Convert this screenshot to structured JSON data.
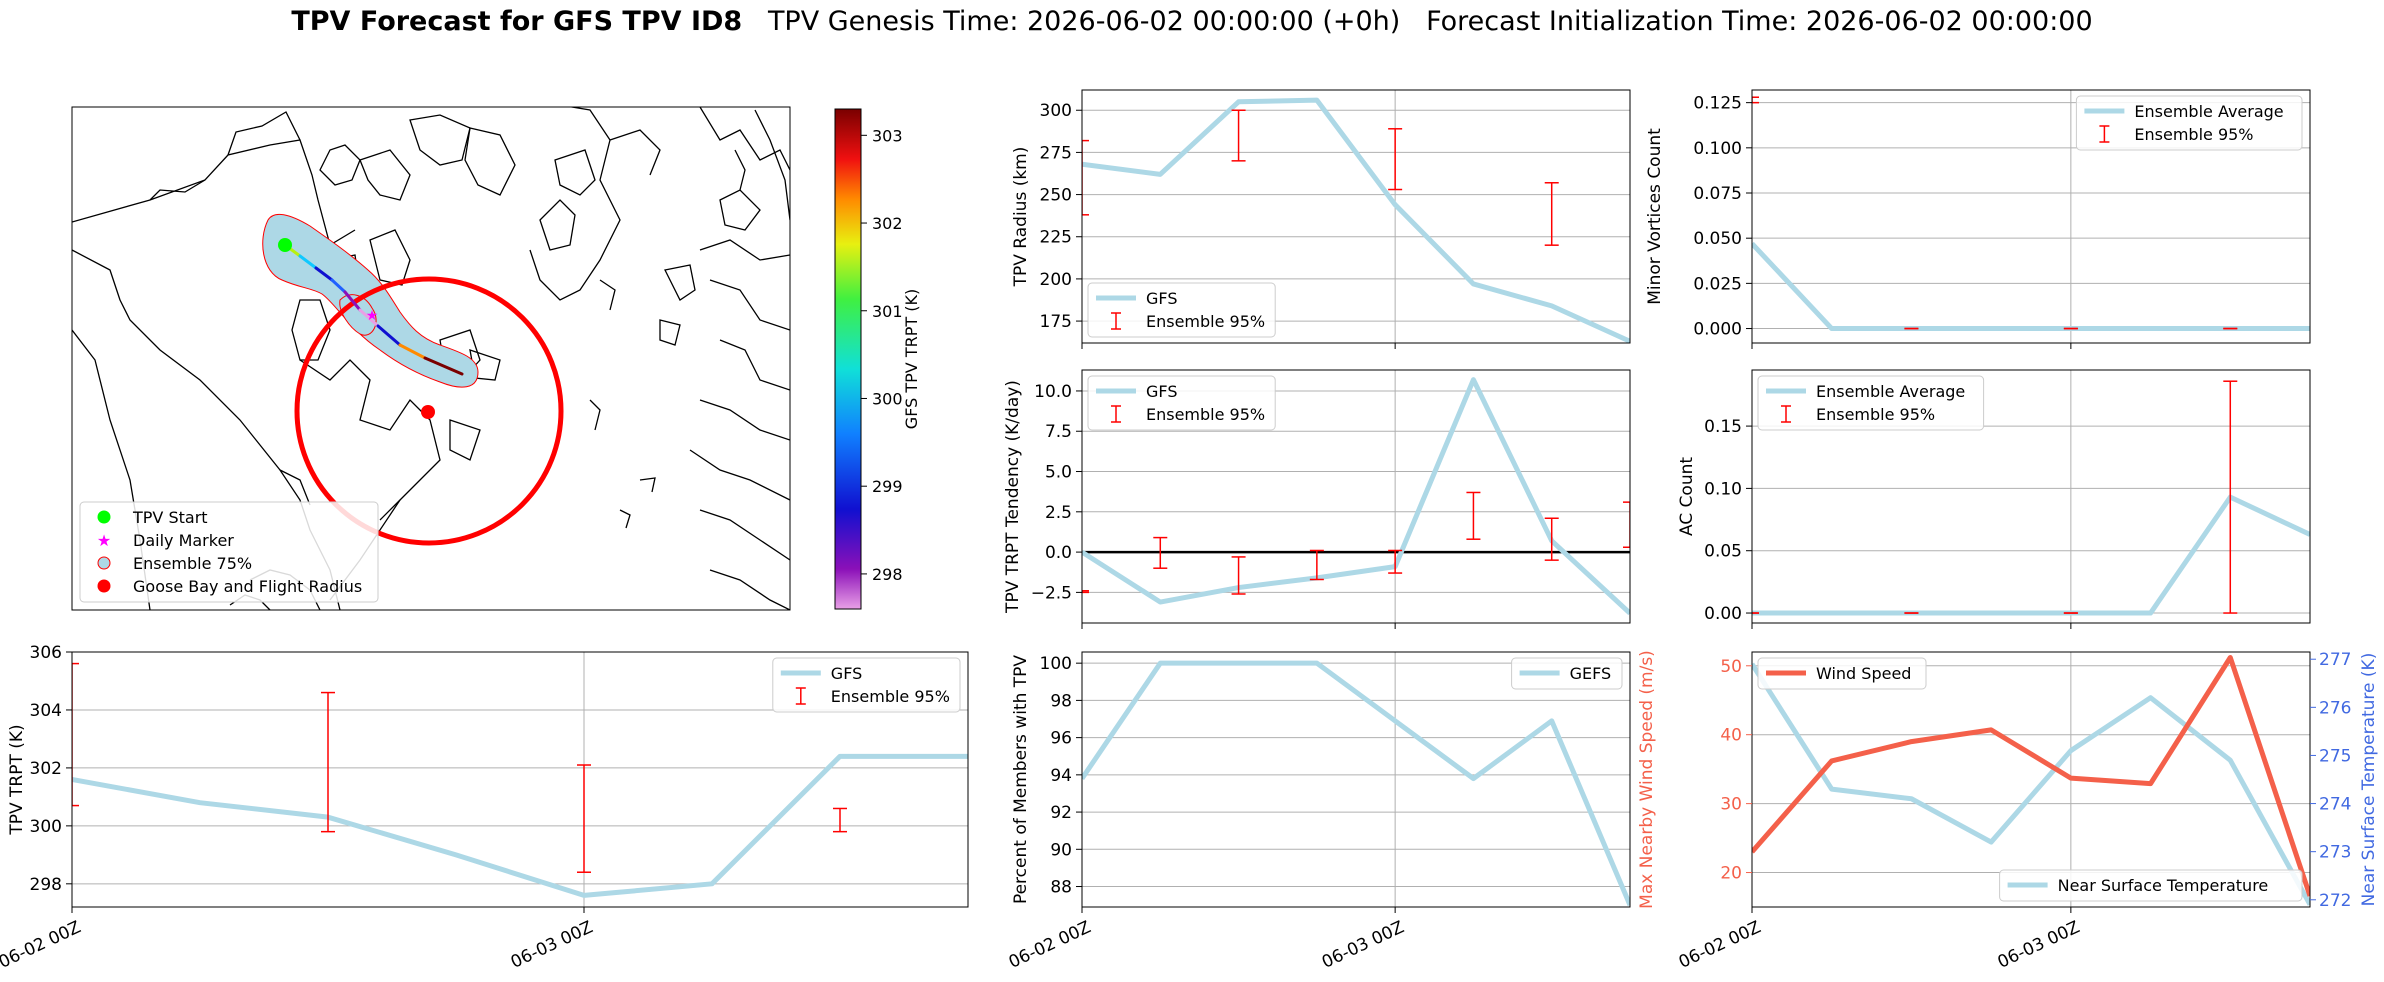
{
  "header": {
    "title_bold": "TPV Forecast for GFS TPV ID8",
    "title_genesis": "TPV Genesis Time: 2026-06-02 00:00:00 (+0h)",
    "title_init": "Forecast Initialization Time: 2026-06-02 00:00:00"
  },
  "colors": {
    "gfs_line": "#add8e6",
    "error_bar": "#ff0000",
    "wind_line": "#f4604a",
    "temp_axis": "#4169e1",
    "zero_line": "#000000"
  },
  "map": {
    "colorbar_label": "GFS TPV TRPT (K)",
    "colorbar_ticks": [
      298,
      299,
      300,
      301,
      302,
      303
    ],
    "colorbar_range": [
      297.6,
      303.3
    ],
    "legend": [
      "TPV Start",
      "Daily Marker",
      "Ensemble 75%",
      "Goose Bay and Flight Radius"
    ]
  },
  "x_tick_labels": [
    "06-02 00Z",
    "06-03 00Z"
  ],
  "chart_data": [
    {
      "id": "radius",
      "type": "line",
      "ylabel": "TPV Radius (km)",
      "ylim": [
        162,
        312
      ],
      "yticks": [
        175,
        200,
        225,
        250,
        275,
        300
      ],
      "legend": [
        "GFS",
        "Ensemble 95%"
      ],
      "legend_pos": "lower-left",
      "x_hours": [
        0,
        6,
        12,
        18,
        24,
        30,
        36,
        42
      ],
      "y": [
        268,
        262,
        305,
        306,
        244,
        197,
        184,
        163
      ],
      "errorbars": [
        {
          "x": 0,
          "low": 238,
          "high": 282
        },
        {
          "x": 12,
          "low": 270,
          "high": 300
        },
        {
          "x": 24,
          "low": 253,
          "high": 289
        },
        {
          "x": 36,
          "low": 220,
          "high": 257
        }
      ]
    },
    {
      "id": "minor",
      "type": "line",
      "ylabel": "Minor Vortices Count",
      "ylim": [
        -0.008,
        0.132
      ],
      "yticks": [
        0.0,
        0.025,
        0.05,
        0.075,
        0.1,
        0.125
      ],
      "tick_labels": [
        "0.000",
        "0.025",
        "0.050",
        "0.075",
        "0.100",
        "0.125"
      ],
      "legend": [
        "Ensemble Average",
        "Ensemble 95%"
      ],
      "legend_pos": "upper-right",
      "x_hours": [
        0,
        6,
        12,
        18,
        24,
        30,
        36,
        42
      ],
      "y": [
        0.047,
        0,
        0,
        0,
        0,
        0,
        0,
        0
      ],
      "errorbars": [
        {
          "x": 0,
          "low": 0.125,
          "high": 0.128
        },
        {
          "x": 12,
          "low": 0,
          "high": 0
        },
        {
          "x": 24,
          "low": 0,
          "high": 0
        },
        {
          "x": 36,
          "low": 0,
          "high": 0
        }
      ]
    },
    {
      "id": "tendency",
      "type": "line",
      "ylabel": "TPV TRPT Tendency (K/day)",
      "ylim": [
        -4.4,
        11.3
      ],
      "yticks": [
        -2.5,
        0.0,
        2.5,
        5.0,
        7.5,
        10.0
      ],
      "tick_labels": [
        "−2.5",
        "0.0",
        "2.5",
        "5.0",
        "7.5",
        "10.0"
      ],
      "legend": [
        "GFS",
        "Ensemble 95%"
      ],
      "legend_pos": "upper-left",
      "x_hours": [
        0,
        6,
        12,
        18,
        24,
        30,
        36,
        42
      ],
      "y": [
        0,
        -3.1,
        -2.2,
        -1.6,
        -0.9,
        10.7,
        0.7,
        -3.8
      ],
      "errorbars": [
        {
          "x": 0,
          "low": -2.5,
          "high": -2.4
        },
        {
          "x": 6,
          "low": -1.0,
          "high": 0.9
        },
        {
          "x": 12,
          "low": -2.6,
          "high": -0.3
        },
        {
          "x": 18,
          "low": -1.7,
          "high": 0.1
        },
        {
          "x": 24,
          "low": -1.3,
          "high": 0.1
        },
        {
          "x": 30,
          "low": 0.8,
          "high": 3.7
        },
        {
          "x": 36,
          "low": -0.5,
          "high": 2.1
        },
        {
          "x": 42,
          "low": 0.3,
          "high": 3.1
        }
      ],
      "hline": 0
    },
    {
      "id": "ac",
      "type": "line",
      "ylabel": "AC Count",
      "ylim": [
        -0.008,
        0.195
      ],
      "yticks": [
        0.0,
        0.05,
        0.1,
        0.15
      ],
      "tick_labels": [
        "0.00",
        "0.05",
        "0.10",
        "0.15"
      ],
      "legend": [
        "Ensemble Average",
        "Ensemble 95%"
      ],
      "legend_pos": "upper-left",
      "x_hours": [
        0,
        6,
        12,
        18,
        24,
        30,
        36,
        42
      ],
      "y": [
        0,
        0,
        0,
        0,
        0,
        0,
        0.093,
        0.063
      ],
      "errorbars": [
        {
          "x": 0,
          "low": 0,
          "high": 0
        },
        {
          "x": 12,
          "low": 0,
          "high": 0
        },
        {
          "x": 24,
          "low": 0,
          "high": 0
        },
        {
          "x": 36,
          "low": 0,
          "high": 0.186
        }
      ]
    },
    {
      "id": "trpt",
      "type": "line",
      "ylabel": "TPV TRPT (K)",
      "ylim": [
        297.2,
        306.0
      ],
      "yticks": [
        298,
        300,
        302,
        304,
        306
      ],
      "legend": [
        "GFS",
        "Ensemble 95%"
      ],
      "legend_pos": "upper-right",
      "x_hours": [
        0,
        6,
        12,
        18,
        24,
        30,
        36,
        42
      ],
      "y": [
        301.6,
        300.8,
        300.3,
        299.0,
        297.6,
        298.0,
        302.4,
        302.4
      ],
      "errorbars": [
        {
          "x": 0,
          "low": 300.7,
          "high": 305.6
        },
        {
          "x": 12,
          "low": 299.8,
          "high": 304.6
        },
        {
          "x": 24,
          "low": 298.4,
          "high": 302.1
        },
        {
          "x": 36,
          "low": 299.8,
          "high": 300.6
        }
      ]
    },
    {
      "id": "members",
      "type": "line",
      "ylabel": "Percent of Members with TPV",
      "ylim": [
        86.9,
        100.6
      ],
      "yticks": [
        88,
        90,
        92,
        94,
        96,
        98,
        100
      ],
      "legend": [
        "GEFS"
      ],
      "legend_pos": "upper-right",
      "x_hours": [
        0,
        6,
        12,
        18,
        24,
        30,
        36,
        42
      ],
      "y": [
        93.8,
        100,
        100,
        100,
        96.9,
        93.8,
        96.9,
        87.0
      ]
    },
    {
      "id": "wind",
      "type": "line",
      "ylabel": "Max Nearby Wind Speed (m/s)",
      "ylim": [
        15.0,
        52.0
      ],
      "yticks": [
        20,
        30,
        40,
        50
      ],
      "legend": [
        "Wind Speed"
      ],
      "legend_pos": "upper-left",
      "x_hours": [
        0,
        6,
        12,
        18,
        24,
        30,
        36,
        42
      ],
      "y": [
        23.0,
        36.2,
        39.0,
        40.7,
        33.7,
        32.9,
        51.2,
        16.6
      ],
      "y2label": "Near Surface Temperature (K)",
      "y2lim": [
        271.85,
        277.15
      ],
      "y2ticks": [
        272,
        273,
        274,
        275,
        276,
        277
      ],
      "y2legend": [
        "Near Surface Temperature"
      ],
      "y2": [
        276.9,
        274.3,
        274.1,
        273.2,
        275.1,
        276.2,
        274.9,
        271.9
      ]
    }
  ]
}
